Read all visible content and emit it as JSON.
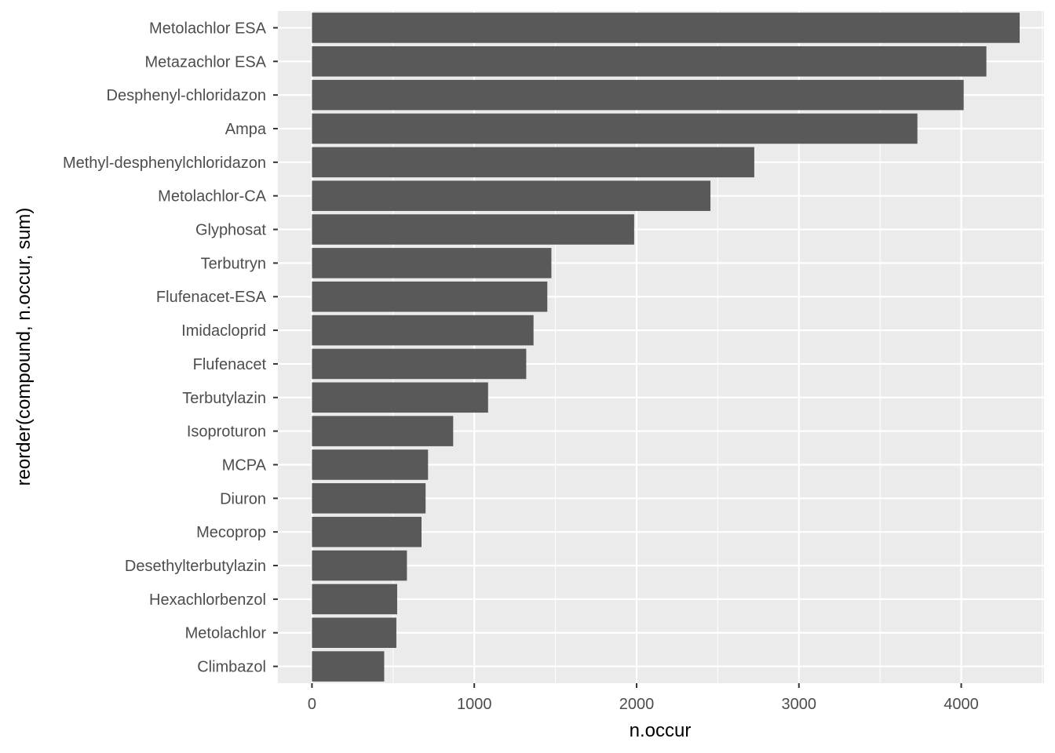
{
  "chart_data": {
    "type": "bar",
    "orientation": "horizontal",
    "xlabel": "n.occur",
    "ylabel": "reorder(compound, n.occur, sum)",
    "xlim": [
      -210,
      4510
    ],
    "x_ticks": [
      0,
      1000,
      2000,
      3000,
      4000
    ],
    "x_tick_labels": [
      "0",
      "1000",
      "2000",
      "3000",
      "4000"
    ],
    "categories": [
      "Metolachlor ESA",
      "Metazachlor ESA",
      "Desphenyl-chloridazon",
      "Ampa",
      "Methyl-desphenylchloridazon",
      "Metolachlor-CA",
      "Glyphosat",
      "Terbutryn",
      "Flufenacet-ESA",
      "Imidacloprid",
      "Flufenacet",
      "Terbutylazin",
      "Isoproturon",
      "MCPA",
      "Diuron",
      "Mecoprop",
      "Desethylterbutylazin",
      "Hexachlorbenzol",
      "Metolachlor",
      "Climbazol"
    ],
    "values": [
      4360,
      4155,
      4015,
      3730,
      2725,
      2455,
      1985,
      1475,
      1450,
      1365,
      1320,
      1085,
      870,
      715,
      700,
      675,
      585,
      525,
      520,
      445
    ],
    "grid": true,
    "legend": "none",
    "colors": {
      "bar": "#595959",
      "panel": "#ebebeb",
      "grid_major": "#ffffff",
      "tick_text": "#4d4d4d",
      "tick_mark": "#333333",
      "title_text": "#000000"
    }
  }
}
